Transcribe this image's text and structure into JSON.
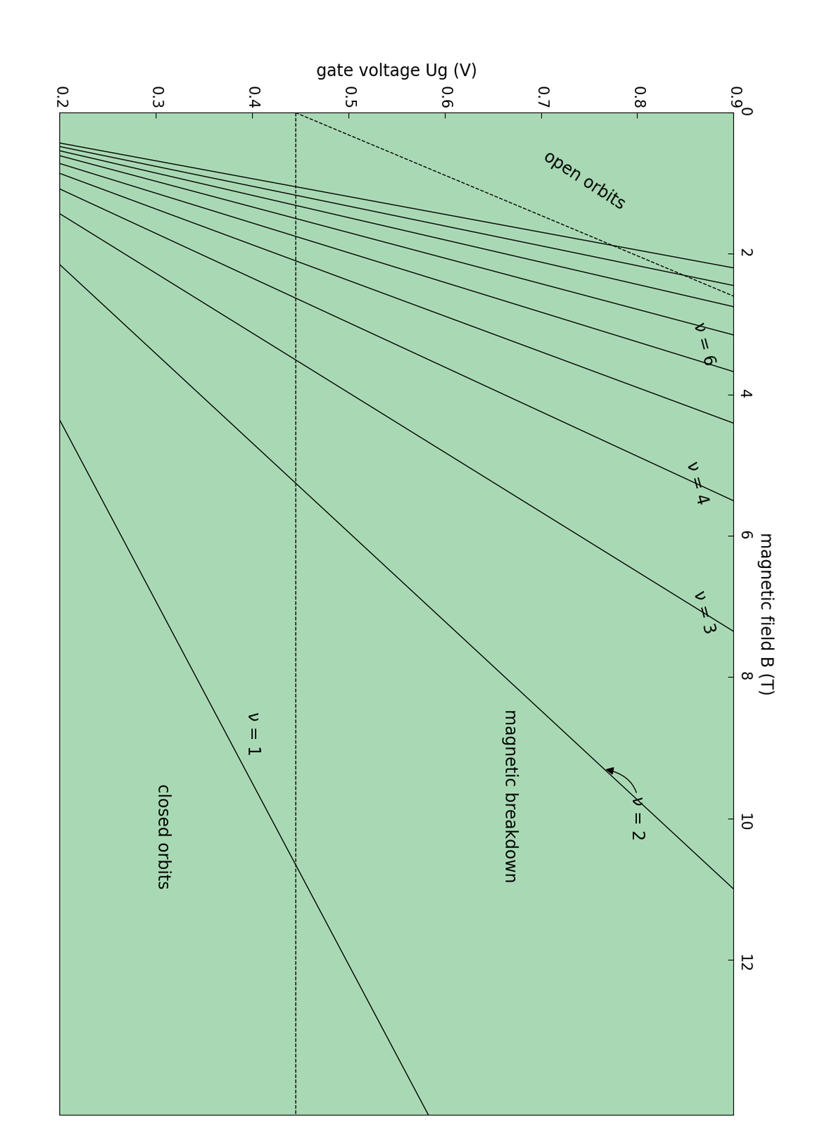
{
  "chart_data": {
    "type": "line",
    "xlabel": "gate voltage Ug (V)",
    "ylabel": "magnetic field B (T)",
    "xlim": [
      0.2,
      0.9
    ],
    "xticks": [
      0.2,
      0.3,
      0.4,
      0.5,
      0.6,
      0.7,
      0.8,
      0.9
    ],
    "ylim": [
      0,
      14.2
    ],
    "yticks": [
      0,
      2,
      4,
      6,
      8,
      10,
      12
    ],
    "color": "#a9d9b4",
    "series": [
      {
        "x": [
          0.2,
          0.583
        ],
        "values": [
          4.35,
          14.2
        ],
        "color": "#000000",
        "line_style": "solid"
      },
      {
        "x": [
          0.2,
          0.9
        ],
        "values": [
          2.15,
          11.0
        ],
        "color": "#000000",
        "line_style": "solid"
      },
      {
        "x": [
          0.2,
          0.9
        ],
        "values": [
          1.43,
          7.35
        ],
        "color": "#000000",
        "line_style": "solid"
      },
      {
        "x": [
          0.2,
          0.9
        ],
        "values": [
          1.08,
          5.5
        ],
        "color": "#000000",
        "line_style": "solid"
      },
      {
        "x": [
          0.2,
          0.9
        ],
        "values": [
          0.86,
          4.4
        ],
        "color": "#000000",
        "line_style": "solid"
      },
      {
        "x": [
          0.2,
          0.9
        ],
        "values": [
          0.72,
          3.67
        ],
        "color": "#000000",
        "line_style": "solid"
      },
      {
        "x": [
          0.2,
          0.9
        ],
        "values": [
          0.61,
          3.15
        ],
        "color": "#000000",
        "line_style": "solid"
      },
      {
        "x": [
          0.2,
          0.9
        ],
        "values": [
          0.54,
          2.75
        ],
        "color": "#000000",
        "line_style": "solid"
      },
      {
        "x": [
          0.2,
          0.9
        ],
        "values": [
          0.48,
          2.45
        ],
        "color": "#000000",
        "line_style": "solid"
      },
      {
        "x": [
          0.2,
          0.9
        ],
        "values": [
          0.43,
          2.2
        ],
        "color": "#000000",
        "line_style": "solid"
      },
      {
        "x": [
          0.445,
          0.445
        ],
        "values": [
          0,
          14.2
        ],
        "color": "#000000",
        "line_style": "dashed"
      },
      {
        "x": [
          0.445,
          0.9
        ],
        "values": [
          0,
          2.6
        ],
        "color": "#000000",
        "line_style": "dashed"
      }
    ],
    "annotations": [
      {
        "text": "open orbits",
        "x": 0.745,
        "y": 0.96
      },
      {
        "text": "ν = 6",
        "x": 0.869,
        "y": 3.28
      },
      {
        "text": "ν = 4",
        "x": 0.862,
        "y": 5.25
      },
      {
        "text": "ν = 3",
        "x": 0.869,
        "y": 7.08
      },
      {
        "text": "ν = 2",
        "x": 0.8,
        "y": 10.0,
        "arrow_to": [
          0.765,
          9.3
        ]
      },
      {
        "text": "magnetic breakdown",
        "x": 0.668,
        "y": 9.68
      },
      {
        "text": "ν = 1",
        "x": 0.401,
        "y": 8.8
      },
      {
        "text": "closed orbits",
        "x": 0.307,
        "y": 10.26
      }
    ]
  }
}
